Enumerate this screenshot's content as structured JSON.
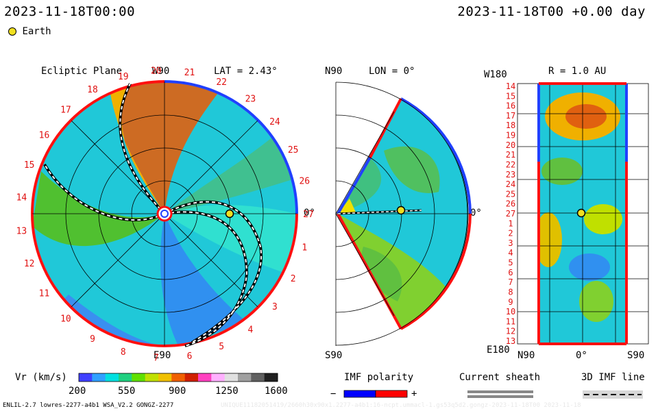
{
  "header": {
    "date_left": "2023-11-18T00:00",
    "date_right": "2023-11-18T00 +0.00 day"
  },
  "legend": {
    "earth": "Earth"
  },
  "ecliptic": {
    "title": "Ecliptic Plane",
    "lat": "LAT = 2.43°",
    "w90": "W90",
    "e90": "E90",
    "zero": "0°",
    "rotation_labels": [
      "1",
      "2",
      "3",
      "4",
      "5",
      "6",
      "7",
      "8",
      "9",
      "10",
      "11",
      "12",
      "13",
      "14",
      "15",
      "16",
      "17",
      "18",
      "19",
      "20",
      "21",
      "22",
      "23",
      "24",
      "25",
      "26",
      "27"
    ]
  },
  "meridional": {
    "n90": "N90",
    "lon": "LON = 0°",
    "s90": "S90",
    "zero": "0°"
  },
  "radial": {
    "w180": "W180",
    "r": "R = 1.0 AU",
    "e180": "E180",
    "n90": "N90",
    "zero": "0°",
    "s90": "S90",
    "rows": [
      "14",
      "15",
      "16",
      "17",
      "18",
      "19",
      "20",
      "21",
      "22",
      "23",
      "24",
      "25",
      "26",
      "27",
      "1",
      "2",
      "3",
      "4",
      "5",
      "6",
      "7",
      "8",
      "9",
      "10",
      "11",
      "12",
      "13"
    ]
  },
  "colorbar": {
    "label": "Vr (km/s)",
    "ticks": [
      "200",
      "550",
      "900",
      "1250",
      "1600"
    ],
    "colors": [
      "#4040ff",
      "#30a0ff",
      "#00e0e0",
      "#20d080",
      "#60e000",
      "#c0e000",
      "#f0c000",
      "#f06000",
      "#d02000",
      "#ff40c0",
      "#ffb0ff",
      "#e0e0e0",
      "#a0a0a0",
      "#606060",
      "#202020"
    ]
  },
  "imf": {
    "title": "IMF polarity",
    "minus": "−",
    "plus": "+",
    "neg_color": "#0000ff",
    "pos_color": "#ff0000"
  },
  "sheath": {
    "title": "Current sheath"
  },
  "imfline": {
    "title": "3D IMF line"
  },
  "footer": {
    "left": "ENLIL-2.7 lowres-2277-a4b1 WSA_V2.2 GONGZ-2277",
    "right": "UNIQUE11182051419/2660h30x90x1.2277-a4b1:16-ncpt.ummacl-1.gs53q5d2.gongz-2023-11-18T00 2023-11-18"
  }
}
